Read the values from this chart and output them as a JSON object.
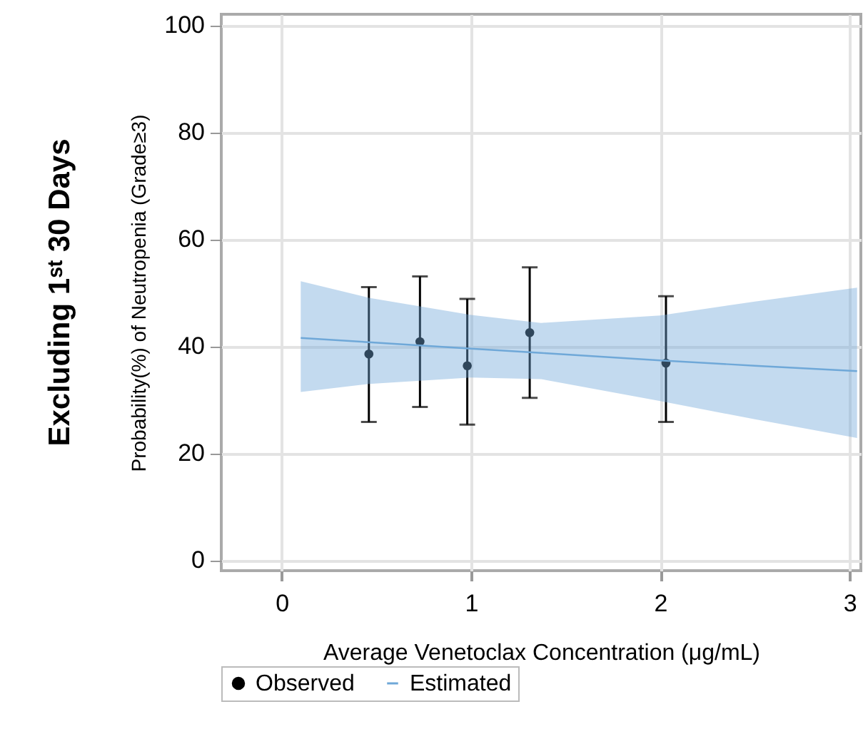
{
  "chart_data": {
    "type": "scatter",
    "title": "Excluding 1ˢᵗ 30 Days",
    "xlabel": "Average Venetoclax Concentration (μg/mL)",
    "ylabel": "Probability(%) of Neutropenia (Grade≥3)",
    "xlim": [
      -0.32,
      3.06
    ],
    "xticks": [
      0,
      1,
      2,
      3
    ],
    "ylim": [
      -2,
      102
    ],
    "yticks": [
      0,
      20,
      40,
      60,
      80,
      100
    ],
    "grid": true,
    "legend": "bottom",
    "series": [
      {
        "name": "Observed",
        "marker": "circle",
        "color": "#000000",
        "x": [
          0.46,
          0.73,
          0.98,
          1.31,
          2.03
        ],
        "values": [
          38.5,
          40.8,
          36.3,
          42.5,
          36.8
        ],
        "errors": [
          [
            25.8,
            51.0
          ],
          [
            28.6,
            53.0
          ],
          [
            25.3,
            48.8
          ],
          [
            30.3,
            54.7
          ],
          [
            25.8,
            49.3
          ]
        ]
      },
      {
        "name": "Estimated",
        "type": "line",
        "line_style": "solid",
        "color": "#6fa8d8",
        "x": [
          0.1,
          0.46,
          1,
          1.37,
          2,
          2.5,
          3.04
        ],
        "values": [
          41.5,
          40.7,
          39.5,
          38.7,
          37.3,
          36.3,
          35.3
        ],
        "lower": [
          31.4,
          32.9,
          34.1,
          33.8,
          29.7,
          26.3,
          22.8
        ],
        "upper": [
          52.1,
          49.0,
          45.8,
          44.3,
          45.7,
          48.3,
          50.9
        ]
      }
    ]
  }
}
